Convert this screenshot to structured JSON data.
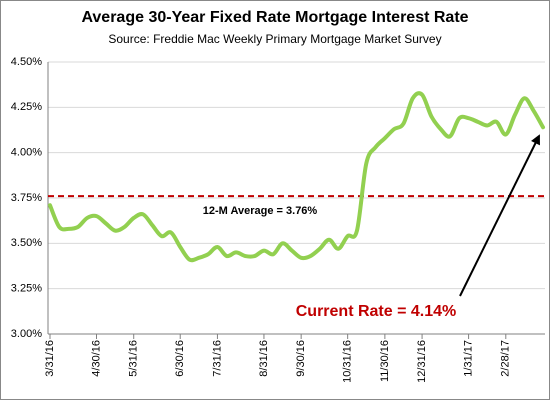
{
  "chart_data": {
    "type": "line",
    "title": "Average 30-Year Fixed Rate Mortgage Interest Rate",
    "subtitle": "Source: Freddie Mac Weekly Primary Mortgage Market Survey",
    "categories": [
      "3/31/16",
      null,
      null,
      null,
      null,
      "4/30/16",
      null,
      null,
      null,
      "5/31/16",
      null,
      null,
      null,
      null,
      "6/30/16",
      null,
      null,
      null,
      "7/31/16",
      null,
      null,
      null,
      null,
      "8/31/16",
      null,
      null,
      null,
      "9/30/16",
      null,
      null,
      null,
      null,
      "10/31/16",
      null,
      null,
      null,
      "11/30/16",
      null,
      null,
      null,
      "12/31/16",
      null,
      null,
      null,
      null,
      "1/31/17",
      null,
      null,
      null,
      "2/28/17",
      null,
      null,
      null,
      null
    ],
    "values": [
      3.71,
      3.59,
      3.58,
      3.59,
      3.64,
      3.65,
      3.61,
      3.57,
      3.59,
      3.64,
      3.66,
      3.6,
      3.54,
      3.56,
      3.48,
      3.41,
      3.42,
      3.44,
      3.48,
      3.43,
      3.45,
      3.43,
      3.43,
      3.46,
      3.44,
      3.5,
      3.46,
      3.42,
      3.43,
      3.47,
      3.52,
      3.47,
      3.54,
      3.57,
      3.94,
      4.03,
      4.08,
      4.13,
      4.16,
      4.3,
      4.32,
      4.2,
      4.13,
      4.09,
      4.19,
      4.19,
      4.17,
      4.15,
      4.17,
      4.1,
      4.21,
      4.3,
      4.23,
      4.14
    ],
    "color": "#92d050",
    "ylim": [
      3.0,
      4.5
    ],
    "yticks": [
      {
        "value": 3.0,
        "label": "3.00%"
      },
      {
        "value": 3.25,
        "label": "3.25%"
      },
      {
        "value": 3.5,
        "label": "3.50%"
      },
      {
        "value": 3.75,
        "label": "3.75%"
      },
      {
        "value": 4.0,
        "label": "4.00%"
      },
      {
        "value": 4.25,
        "label": "4.25%"
      },
      {
        "value": 4.5,
        "label": "4.50%"
      }
    ],
    "grid": true,
    "reference_line": {
      "value": 3.76,
      "label": "12-M Average = 3.76%",
      "color": "#c00000"
    },
    "annotation": "Current Rate = 4.14%"
  }
}
